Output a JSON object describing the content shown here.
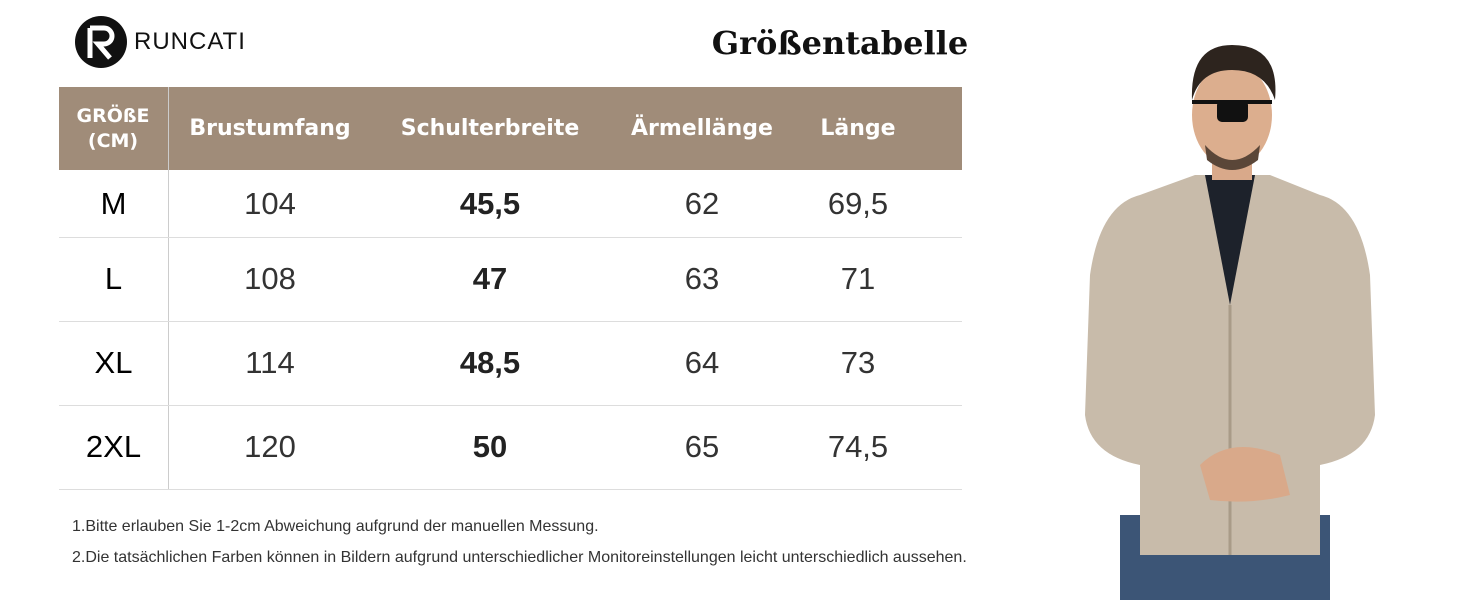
{
  "brand": "RUNCATI",
  "title": "Größentabelle",
  "table": {
    "header": [
      "GRÖßE (CM)",
      "Brustumfang",
      "Schulterbreite",
      "Ärmellänge",
      "Länge"
    ],
    "rows": [
      [
        "M",
        "104",
        "45,5",
        "62",
        "69,5"
      ],
      [
        "L",
        "108",
        "47",
        "63",
        "71"
      ],
      [
        "XL",
        "114",
        "48,5",
        "64",
        "73"
      ],
      [
        "2XL",
        "120",
        "50",
        "65",
        "74,5"
      ]
    ]
  },
  "notes": [
    "1.Bitte erlauben Sie 1-2cm Abweichung aufgrund der manuellen Messung.",
    "2.Die tatsächlichen Farben können in Bildern aufgrund unterschiedlicher Monitoreinstellungen leicht unterschiedlich aussehen."
  ]
}
